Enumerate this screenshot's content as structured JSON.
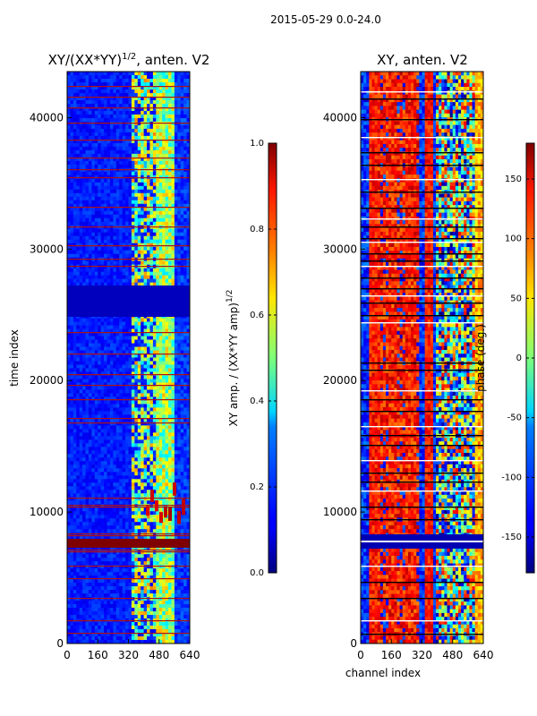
{
  "figure": {
    "suptitle": "2015-05-29 0.0-24.0"
  },
  "chart_data": [
    {
      "type": "heatmap",
      "title": "XY/(XX*YY)^{1/2}, anten. V2",
      "title_main": "XY/(XX*YY)",
      "title_sup": "1/2",
      "title_tail": ", anten. V2",
      "xlabel": "",
      "ylabel": "time index",
      "xlim": [
        0,
        640
      ],
      "ylim": [
        0,
        43500
      ],
      "xticks": [
        0,
        160,
        320,
        480,
        640
      ],
      "yticks": [
        0,
        10000,
        20000,
        30000,
        40000
      ],
      "colormap": "jet",
      "colorbar": {
        "label": "XY amp. / (XX*YY amp)^{1/2}",
        "label_main": "XY amp. / (XX*YY amp)",
        "label_sup": "1/2",
        "range": [
          0.0,
          1.0
        ],
        "ticks": [
          "0.0",
          "0.2",
          "0.4",
          "0.6",
          "0.8",
          "1.0"
        ]
      }
    },
    {
      "type": "heatmap",
      "title": "XY, anten. V2",
      "xlabel": "channel index",
      "ylabel": "",
      "xlim": [
        0,
        640
      ],
      "ylim": [
        0,
        43500
      ],
      "xticks": [
        0,
        160,
        320,
        480,
        640
      ],
      "yticks": [
        0,
        10000,
        20000,
        30000,
        40000
      ],
      "colormap": "jet",
      "colorbar": {
        "label": "phase (deg.)",
        "range": [
          -180,
          180
        ],
        "ticks": [
          "-150",
          "-100",
          "-50",
          "0",
          "50",
          "100",
          "150"
        ]
      }
    }
  ]
}
